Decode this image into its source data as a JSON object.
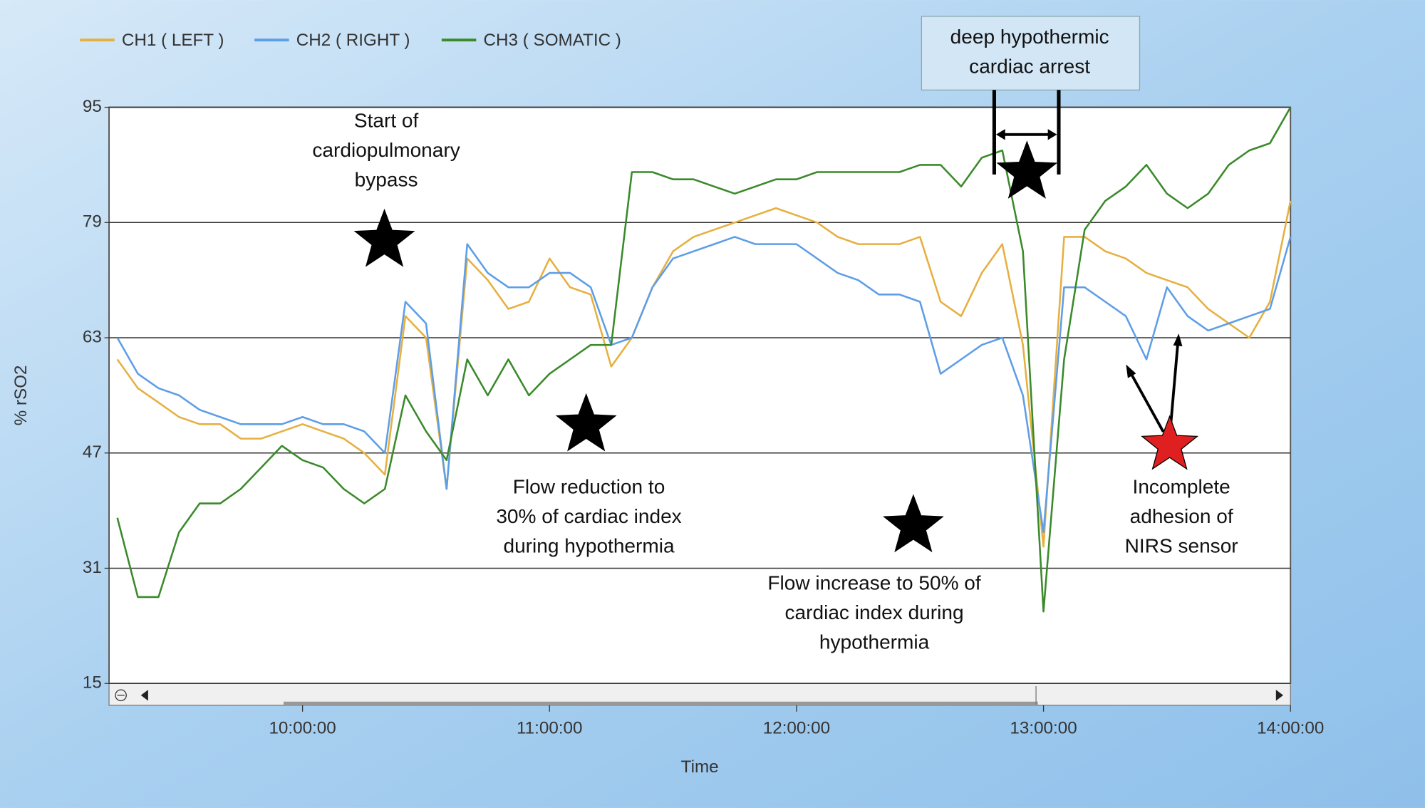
{
  "chart_data": {
    "type": "line",
    "x_label": "Time",
    "y_label": "% rSO2",
    "x": [
      "09:15:00",
      "09:20:00",
      "09:25:00",
      "09:30:00",
      "09:35:00",
      "09:40:00",
      "09:45:00",
      "09:50:00",
      "09:55:00",
      "10:00:00",
      "10:05:00",
      "10:10:00",
      "10:15:00",
      "10:20:00",
      "10:25:00",
      "10:30:00",
      "10:35:00",
      "10:40:00",
      "10:45:00",
      "10:50:00",
      "10:55:00",
      "11:00:00",
      "11:05:00",
      "11:10:00",
      "11:15:00",
      "11:20:00",
      "11:25:00",
      "11:30:00",
      "11:35:00",
      "11:40:00",
      "11:45:00",
      "11:50:00",
      "11:55:00",
      "12:00:00",
      "12:05:00",
      "12:10:00",
      "12:15:00",
      "12:20:00",
      "12:25:00",
      "12:30:00",
      "12:35:00",
      "12:40:00",
      "12:45:00",
      "12:50:00",
      "12:55:00",
      "13:00:00",
      "13:05:00",
      "13:10:00",
      "13:15:00",
      "13:20:00",
      "13:25:00",
      "13:30:00",
      "13:35:00",
      "13:40:00",
      "13:45:00",
      "13:50:00",
      "13:55:00",
      "14:00:00"
    ],
    "series": [
      {
        "name": "CH1 ( LEFT )",
        "color": "#e6b040",
        "values": [
          60,
          56,
          54,
          52,
          51,
          51,
          49,
          49,
          50,
          51,
          50,
          49,
          47,
          44,
          66,
          63,
          42,
          74,
          71,
          67,
          68,
          74,
          70,
          69,
          59,
          63,
          70,
          75,
          77,
          78,
          79,
          80,
          81,
          80,
          79,
          77,
          76,
          76,
          76,
          77,
          68,
          66,
          72,
          76,
          62,
          34,
          77,
          77,
          75,
          74,
          72,
          71,
          70,
          67,
          65,
          63,
          68,
          82
        ]
      },
      {
        "name": "CH2 ( RIGHT )",
        "color": "#5e9ee6",
        "values": [
          63,
          58,
          56,
          55,
          53,
          52,
          51,
          51,
          51,
          52,
          51,
          51,
          50,
          47,
          68,
          65,
          42,
          76,
          72,
          70,
          70,
          72,
          72,
          70,
          62,
          63,
          70,
          74,
          75,
          76,
          77,
          76,
          76,
          76,
          74,
          72,
          71,
          69,
          69,
          68,
          58,
          60,
          62,
          63,
          55,
          36,
          70,
          70,
          68,
          66,
          60,
          70,
          66,
          64,
          65,
          66,
          67,
          77
        ]
      },
      {
        "name": "CH3 ( SOMATIC )",
        "color": "#3a8a2a",
        "values": [
          38,
          27,
          27,
          36,
          40,
          40,
          42,
          45,
          48,
          46,
          45,
          42,
          40,
          42,
          55,
          50,
          46,
          60,
          55,
          60,
          55,
          58,
          60,
          62,
          62,
          86,
          86,
          85,
          85,
          84,
          83,
          84,
          85,
          85,
          86,
          86,
          86,
          86,
          86,
          87,
          87,
          84,
          88,
          89,
          75,
          25,
          60,
          78,
          82,
          84,
          87,
          83,
          81,
          83,
          87,
          89,
          90,
          95
        ]
      }
    ],
    "xlim": [
      "09:13:00",
      "14:00:00"
    ],
    "xticks": [
      "10:00:00",
      "11:00:00",
      "12:00:00",
      "13:00:00",
      "14:00:00"
    ],
    "ylim": [
      15,
      95
    ],
    "yticks": [
      15,
      31,
      47,
      63,
      79,
      95
    ],
    "grid": true,
    "legend": "top",
    "annotations": [
      {
        "lines": [
          "Start of",
          "cardiopulmonary",
          "bypass"
        ]
      },
      {
        "lines": [
          "Flow reduction to",
          "30% of cardiac index",
          "during hypothermia"
        ]
      },
      {
        "lines": [
          "Flow increase to 50% of",
          "cardiac index during",
          "hypothermia"
        ]
      },
      {
        "lines": [
          "deep hypothermic",
          "cardiac arrest"
        ]
      },
      {
        "lines": [
          "Incomplete",
          "adhesion of",
          "NIRS sensor"
        ]
      }
    ]
  }
}
